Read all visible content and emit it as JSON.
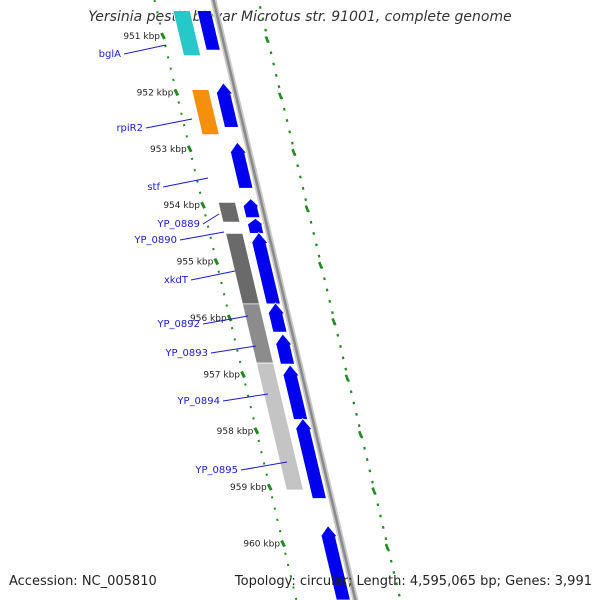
{
  "title": "Yersinia pestis biovar Microtus str. 91001, complete genome",
  "accession_text": "Accession: NC_005810",
  "summary_text": "Topology: circular; Length: 4,595,065 bp; Genes: 3,991",
  "colors": {
    "forward_cds": "#0000ee",
    "cyan_feature": "#27c8c8",
    "orange_feature": "#f5900f",
    "dark_gray_feature": "#6a6a6a",
    "mid_gray_feature": "#8c8c8c",
    "light_gray_feature": "#c4c4c4",
    "backbone": "#8a8a8a",
    "tick": "#228b22",
    "gene_label": "#1a1acc"
  },
  "kbp_ticks": [
    {
      "kbp": 951,
      "label": "951 kbp"
    },
    {
      "kbp": 952,
      "label": "952 kbp"
    },
    {
      "kbp": 953,
      "label": "953 kbp"
    },
    {
      "kbp": 954,
      "label": "954 kbp"
    },
    {
      "kbp": 955,
      "label": "955 kbp"
    },
    {
      "kbp": 956,
      "label": "956 kbp"
    },
    {
      "kbp": 957,
      "label": "957 kbp"
    },
    {
      "kbp": 958,
      "label": "958 kbp"
    },
    {
      "kbp": 959,
      "label": "959 kbp"
    },
    {
      "kbp": 960,
      "label": "960 kbp"
    }
  ],
  "gene_labels": [
    {
      "name": "bglA",
      "label": "bglA"
    },
    {
      "name": "rpiR2",
      "label": "rpiR2"
    },
    {
      "name": "stf",
      "label": "stf"
    },
    {
      "name": "YP_0889",
      "label": "YP_0889"
    },
    {
      "name": "YP_0890",
      "label": "YP_0890"
    },
    {
      "name": "xkdT",
      "label": "xkdT"
    },
    {
      "name": "YP_0892",
      "label": "YP_0892"
    },
    {
      "name": "YP_0893",
      "label": "YP_0893"
    },
    {
      "name": "YP_0894",
      "label": "YP_0894"
    },
    {
      "name": "YP_0895",
      "label": "YP_0895"
    }
  ],
  "features": [
    {
      "name": "bglA",
      "strand": "rev",
      "color": "cyan_feature",
      "start_kbp": 950.55,
      "end_kbp": 951.35,
      "arrow": false
    },
    {
      "name": "bglA-fwd",
      "strand": "fwd",
      "color": "forward_cds",
      "start_kbp": 950.55,
      "end_kbp": 951.25,
      "arrow": false
    },
    {
      "name": "rpiR2",
      "strand": "rev",
      "color": "orange_feature",
      "start_kbp": 951.95,
      "end_kbp": 952.75,
      "arrow": false
    },
    {
      "name": "rpiR2-fwd",
      "strand": "fwd",
      "color": "forward_cds",
      "start_kbp": 951.85,
      "end_kbp": 952.62,
      "arrow": true
    },
    {
      "name": "stf",
      "strand": "fwd",
      "color": "forward_cds",
      "start_kbp": 952.9,
      "end_kbp": 953.7,
      "arrow": true
    },
    {
      "name": "YP_0889",
      "strand": "rev",
      "color": "dark_gray_feature",
      "start_kbp": 953.95,
      "end_kbp": 954.3,
      "arrow": false
    },
    {
      "name": "YP_0889-fwd",
      "strand": "fwd",
      "color": "forward_cds",
      "start_kbp": 953.9,
      "end_kbp": 954.22,
      "arrow": true
    },
    {
      "name": "YP_0890-fwd",
      "strand": "fwd",
      "color": "forward_cds",
      "start_kbp": 954.25,
      "end_kbp": 954.5,
      "arrow": true
    },
    {
      "name": "xkdT",
      "strand": "rev",
      "color": "dark_gray_feature",
      "start_kbp": 954.5,
      "end_kbp": 955.75,
      "arrow": false
    },
    {
      "name": "xkdT-fwd",
      "strand": "fwd",
      "color": "forward_cds",
      "start_kbp": 954.5,
      "end_kbp": 955.75,
      "arrow": true
    },
    {
      "name": "YP_0892",
      "strand": "rev",
      "color": "mid_gray_feature",
      "start_kbp": 955.75,
      "end_kbp": 956.8,
      "arrow": false
    },
    {
      "name": "YP_0892-fwd",
      "strand": "fwd",
      "color": "forward_cds",
      "start_kbp": 955.75,
      "end_kbp": 956.25,
      "arrow": true
    },
    {
      "name": "YP_0893-fwd",
      "strand": "fwd",
      "color": "forward_cds",
      "start_kbp": 956.3,
      "end_kbp": 956.82,
      "arrow": true
    },
    {
      "name": "YP_0894",
      "strand": "rev",
      "color": "light_gray_feature",
      "start_kbp": 956.8,
      "end_kbp": 959.05,
      "arrow": false
    },
    {
      "name": "YP_0894-fwd",
      "strand": "fwd",
      "color": "forward_cds",
      "start_kbp": 956.85,
      "end_kbp": 957.8,
      "arrow": true
    },
    {
      "name": "YP_0895-fwd",
      "strand": "fwd",
      "color": "forward_cds",
      "start_kbp": 957.8,
      "end_kbp": 959.2,
      "arrow": true
    },
    {
      "name": "next-fwd",
      "strand": "fwd",
      "color": "forward_cds",
      "start_kbp": 959.7,
      "end_kbp": 961.0,
      "arrow": true
    }
  ]
}
